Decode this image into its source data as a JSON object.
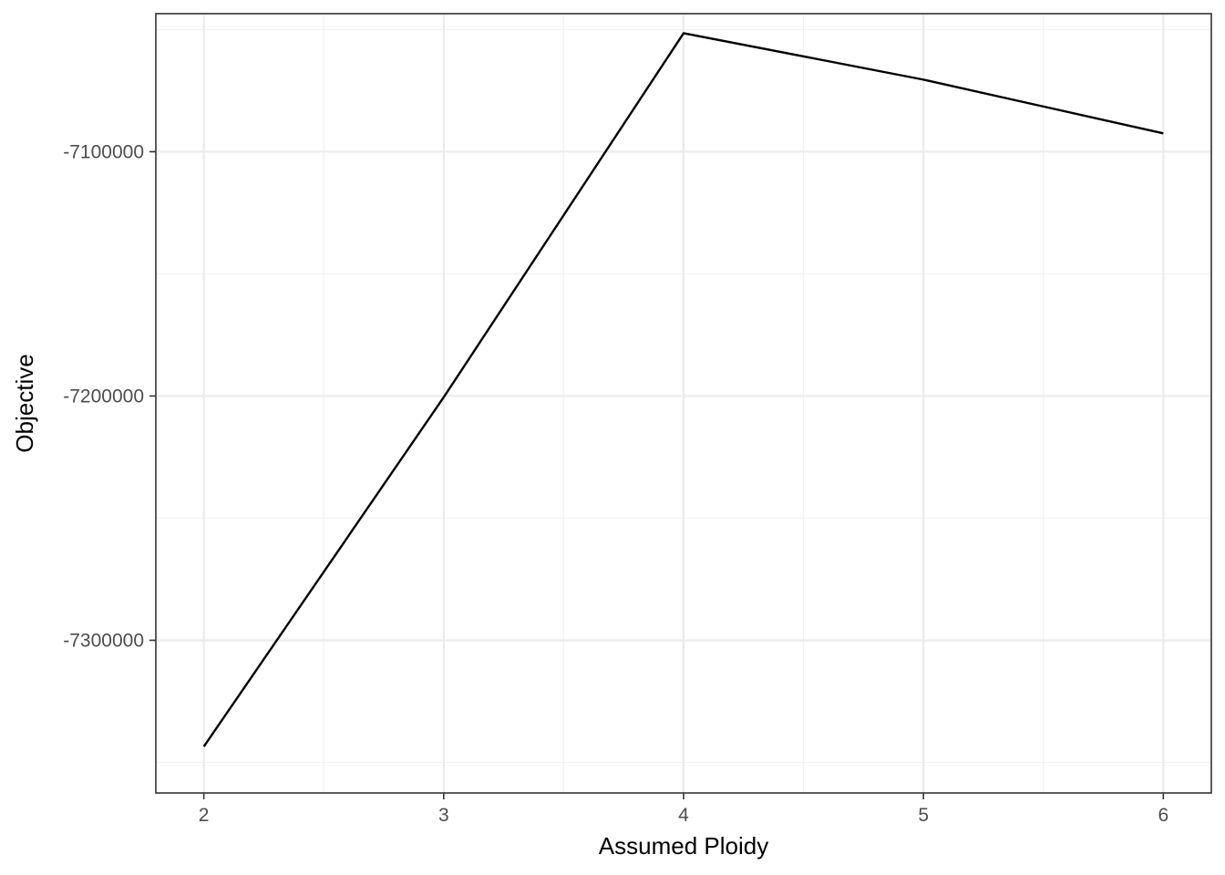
{
  "chart_data": {
    "type": "line",
    "title": "",
    "xlabel": "Assumed Ploidy",
    "ylabel": "Objective",
    "x": [
      2,
      3,
      4,
      5,
      6
    ],
    "series": [
      {
        "values": [
          -7343500,
          -7200500,
          -7051500,
          -7070500,
          -7092500
        ]
      }
    ],
    "xlim": [
      1.8,
      6.2
    ],
    "ylim": [
      -7362500,
      -7043500
    ],
    "x_ticks": [
      2,
      3,
      4,
      5,
      6
    ],
    "x_tick_labels": [
      "2",
      "3",
      "4",
      "5",
      "6"
    ],
    "y_ticks": [
      -7300000,
      -7200000,
      -7100000
    ],
    "y_tick_labels": [
      "-7300000",
      "-7200000",
      "-7100000"
    ],
    "x_minor_ticks": [
      2.5,
      3.5,
      4.5,
      5.5
    ],
    "y_minor_ticks": [
      -7350000,
      -7250000,
      -7150000,
      -7050000
    ],
    "grid": true,
    "legend": "none",
    "line_color": "#000000"
  }
}
